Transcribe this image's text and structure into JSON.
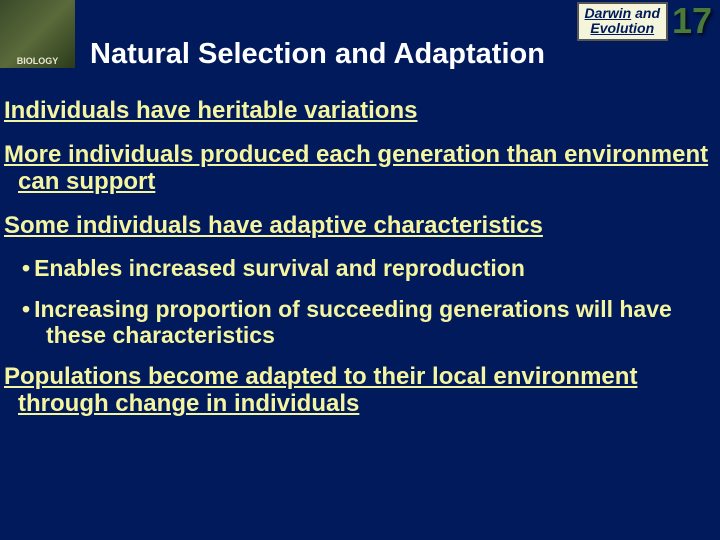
{
  "header": {
    "logo_text": "BIOLOGY",
    "chapter_label_line1": "Darwin",
    "chapter_label_and": " and",
    "chapter_label_line2": "Evolution",
    "chapter_number": "17",
    "slide_title": "Natural Selection and Adaptation"
  },
  "content": {
    "p1": "Individuals have heritable variations",
    "p2": "More individuals produced each generation than environment can support",
    "p3": "Some individuals have adaptive characteristics",
    "s1": "Enables increased survival and reproduction",
    "s2": "Increasing proportion of succeeding generations will have these characteristics",
    "p4": "Populations become adapted to their local environment through change in individuals"
  },
  "colors": {
    "background": "#001a5c",
    "text": "#f5f5a0",
    "title": "#ffffff",
    "accent_green": "#6aaa3a",
    "chapter_number": "#4a7a3a",
    "label_bg": "#f5f5dc"
  }
}
